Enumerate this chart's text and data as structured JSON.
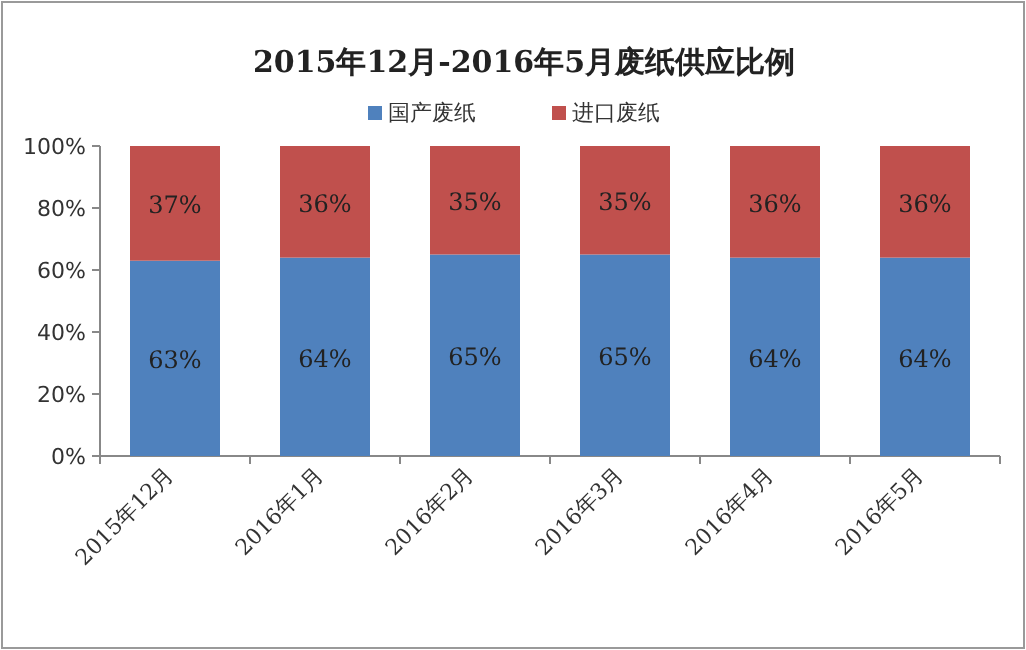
{
  "chart_data": {
    "type": "bar",
    "title": "2015年12月-2016年5月废纸供应比例",
    "categories": [
      "2015年12月",
      "2016年1月",
      "2016年2月",
      "2016年3月",
      "2016年4月",
      "2016年5月"
    ],
    "stacked": true,
    "legend": "top",
    "ylim": [
      0,
      100
    ],
    "yticks": [
      {
        "value": 0,
        "label": "0%"
      },
      {
        "value": 20,
        "label": "20%"
      },
      {
        "value": 40,
        "label": "40%"
      },
      {
        "value": 60,
        "label": "60%"
      },
      {
        "value": 80,
        "label": "80%"
      },
      {
        "value": 100,
        "label": "100%"
      }
    ],
    "series": [
      {
        "name": "国产废纸",
        "color": "#4f81bd",
        "values": [
          63,
          64,
          65,
          65,
          64,
          64
        ],
        "value_labels": [
          "63%",
          "64%",
          "65%",
          "65%",
          "64%",
          "64%"
        ]
      },
      {
        "name": "进口废纸",
        "color": "#c0504d",
        "values": [
          37,
          36,
          35,
          35,
          36,
          36
        ],
        "value_labels": [
          "37%",
          "36%",
          "35%",
          "35%",
          "36%",
          "36%"
        ]
      }
    ]
  }
}
